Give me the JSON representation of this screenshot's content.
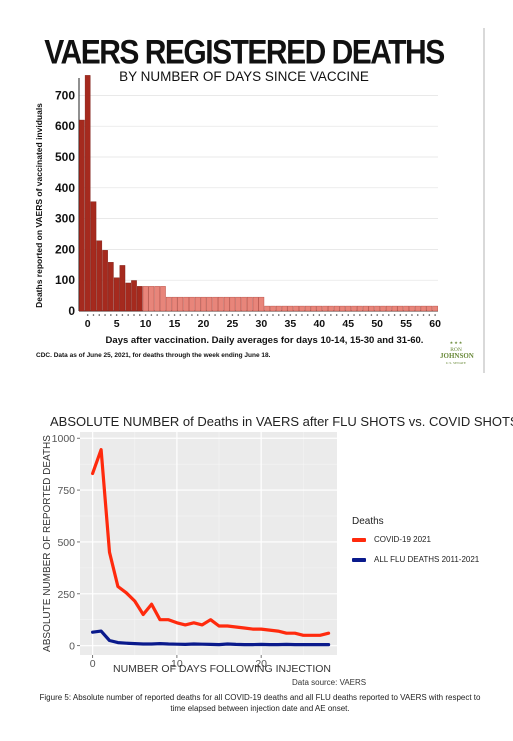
{
  "chart_data": [
    {
      "type": "bar",
      "title": "VAERS REGISTERED DEATHS",
      "subtitle": "BY NUMBER OF DAYS SINCE VACCINE",
      "xlabel": "Days after vaccination. Daily averages for days 10-14, 15-30 and 31-60.",
      "ylabel": "Deaths reported on VAERS of vaccinated inviduals",
      "ylim": [
        0,
        750
      ],
      "yticks": [
        "0",
        "100",
        "200",
        "300",
        "400",
        "500",
        "600",
        "700"
      ],
      "xticks": [
        "0",
        "5",
        "10",
        "15",
        "20",
        "25",
        "30",
        "35",
        "40",
        "45",
        "50",
        "55",
        "60"
      ],
      "x": [
        -1,
        0,
        1,
        2,
        3,
        4,
        5,
        6,
        7,
        8,
        9,
        10,
        11,
        12,
        13,
        14,
        15,
        16,
        17,
        18,
        19,
        20,
        21,
        22,
        23,
        24,
        25,
        26,
        27,
        28,
        29,
        30,
        31,
        32,
        33,
        34,
        35,
        36,
        37,
        38,
        39,
        40,
        41,
        42,
        43,
        44,
        45,
        46,
        47,
        48,
        49,
        50,
        51,
        52,
        53,
        54,
        55,
        56,
        57,
        58,
        59,
        60
      ],
      "values": [
        620,
        765,
        355,
        228,
        197,
        158,
        108,
        148,
        91,
        99,
        80,
        80,
        80,
        80,
        80,
        45,
        45,
        45,
        45,
        45,
        45,
        45,
        45,
        45,
        45,
        45,
        45,
        45,
        45,
        45,
        45,
        45,
        16,
        16,
        16,
        16,
        16,
        16,
        16,
        16,
        16,
        16,
        16,
        16,
        16,
        16,
        16,
        16,
        16,
        16,
        16,
        16,
        16,
        16,
        16,
        16,
        16,
        16,
        16,
        16,
        16,
        16
      ],
      "colors": {
        "daily": "#a52a1e",
        "average": "#e8857a"
      },
      "grid": true,
      "note": "CDC. Data as of June 25, 2021, for deaths through the week ending June 18.",
      "logo": "RON JOHNSON U.S. SENATE"
    },
    {
      "type": "line",
      "title": "ABSOLUTE NUMBER of Deaths in VAERS after FLU SHOTS vs. COVID SHOTS",
      "xlabel": "NUMBER OF DAYS FOLLOWING INJECTION",
      "ylabel": "ABSOLUTE NUMBER OF REPORTED DEATHS",
      "xlim": [
        -1.5,
        29
      ],
      "ylim": [
        -45,
        1030
      ],
      "yticks": [
        0,
        250,
        500,
        750,
        1000
      ],
      "xticks": [
        0,
        10,
        20
      ],
      "legend_title": "Deaths",
      "legend_position": "right",
      "series": [
        {
          "name": "COVID-19 2021",
          "color": "#ff2a0d",
          "x": [
            0,
            1,
            2,
            3,
            4,
            5,
            6,
            7,
            8,
            9,
            10,
            11,
            12,
            13,
            14,
            15,
            16,
            17,
            18,
            19,
            20,
            21,
            22,
            23,
            24,
            25,
            26,
            27,
            28
          ],
          "values": [
            830,
            945,
            450,
            285,
            255,
            215,
            150,
            200,
            125,
            125,
            110,
            100,
            110,
            100,
            125,
            95,
            95,
            90,
            85,
            80,
            80,
            75,
            70,
            60,
            60,
            50,
            50,
            50,
            60
          ]
        },
        {
          "name": "ALL FLU DEATHS 2011-2021",
          "color": "#0a1a8c",
          "x": [
            0,
            1,
            2,
            3,
            4,
            5,
            6,
            7,
            8,
            9,
            10,
            11,
            12,
            13,
            14,
            15,
            16,
            17,
            18,
            19,
            20,
            21,
            22,
            23,
            24,
            25,
            26,
            27,
            28
          ],
          "values": [
            65,
            70,
            25,
            15,
            12,
            10,
            8,
            8,
            10,
            8,
            7,
            6,
            8,
            7,
            6,
            5,
            8,
            6,
            5,
            5,
            6,
            5,
            5,
            6,
            5,
            5,
            5,
            5,
            5
          ]
        }
      ],
      "source": "Data source: VAERS",
      "caption": "Figure 5: Absolute number of reported deaths  for all COVID-19 deaths and all FLU deaths reported to VAERS with respect to time elapsed between injection date and AE onset."
    }
  ]
}
